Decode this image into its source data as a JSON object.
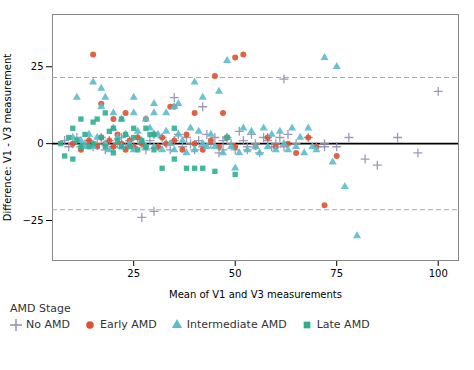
{
  "chart_data": {
    "type": "scatter",
    "xlabel": "Mean of V1 and V3 measurements",
    "ylabel": "Difference: V1 - V3 measurement",
    "xlim": [
      5,
      105
    ],
    "ylim": [
      -38,
      42
    ],
    "xticks": [
      25,
      50,
      75,
      100
    ],
    "yticks": [
      -25,
      0,
      25
    ],
    "grid": false,
    "legend_title": "AMD Stage",
    "lines": [
      {
        "value": 0,
        "color": "#000000",
        "line_style": "solid"
      },
      {
        "value": 21.5,
        "color": "#AAAAAA",
        "line_style": "dashed"
      },
      {
        "value": -21.5,
        "color": "#AAAAAA",
        "line_style": "dashed"
      }
    ],
    "series": [
      {
        "name": "No AMD",
        "color": "#9090B0",
        "marker": "plus",
        "x": [
          8,
          9,
          10,
          11,
          12,
          13,
          14,
          15,
          16,
          17,
          18,
          19,
          20,
          21,
          22,
          23,
          24,
          25,
          26,
          27,
          28,
          29,
          30,
          31,
          32,
          33,
          34,
          35,
          36,
          37,
          38,
          39,
          40,
          41,
          42,
          43,
          44,
          45,
          46,
          47,
          48,
          49,
          50,
          51,
          52,
          53,
          54,
          55,
          56,
          57,
          58,
          59,
          60,
          61,
          62,
          63,
          65,
          68,
          70,
          72,
          75,
          78,
          82,
          85,
          90,
          95,
          100,
          62,
          47,
          53,
          58,
          72,
          30,
          27,
          35,
          42
        ],
        "values": [
          1,
          -1,
          0,
          2,
          -1,
          0,
          1,
          -1,
          0,
          2,
          -2,
          1,
          -1,
          0,
          2,
          -1,
          1,
          -1,
          2,
          0,
          -2,
          1,
          3,
          -1,
          2,
          0,
          -2,
          1,
          3,
          -1,
          2,
          0,
          -2,
          1,
          -1,
          3,
          0,
          2,
          -3,
          1,
          2,
          0,
          -2,
          4,
          1,
          -2,
          3,
          0,
          -3,
          2,
          1,
          -1,
          0,
          2,
          -1,
          3,
          0,
          2,
          -1,
          0,
          -1,
          2,
          -5,
          -7,
          2,
          -3,
          17,
          21,
          -2,
          -1,
          2,
          -1,
          -22,
          -24,
          15,
          12
        ]
      },
      {
        "name": "Early AMD",
        "color": "#E05030",
        "marker": "circle",
        "x": [
          10,
          12,
          14,
          15,
          16,
          17,
          18,
          19,
          20,
          21,
          22,
          23,
          24,
          25,
          26,
          27,
          28,
          30,
          31,
          32,
          33,
          34,
          35,
          37,
          38,
          40,
          42,
          44,
          46,
          48,
          50,
          52,
          55,
          58,
          60,
          63,
          65,
          68,
          70,
          72,
          75,
          45,
          47,
          17,
          20,
          23,
          28,
          35,
          40,
          50
        ],
        "values": [
          0,
          -2,
          1,
          29,
          -1,
          2,
          0,
          1,
          -1,
          3,
          0,
          -2,
          1,
          -1,
          2,
          0,
          -1,
          3,
          -1,
          2,
          0,
          12,
          1,
          -2,
          3,
          0,
          -2,
          1,
          -1,
          2,
          -1,
          29,
          -1,
          2,
          -1,
          0,
          -3,
          2,
          -1,
          -20,
          -4,
          22,
          10,
          13,
          8,
          10,
          8,
          12,
          10,
          28
        ]
      },
      {
        "name": "Intermediate AMD",
        "color": "#5BBDCC",
        "marker": "triangle",
        "x": [
          10,
          11,
          12,
          13,
          14,
          15,
          16,
          17,
          18,
          19,
          20,
          21,
          22,
          23,
          24,
          25,
          26,
          27,
          28,
          29,
          30,
          31,
          32,
          33,
          34,
          35,
          36,
          37,
          38,
          39,
          40,
          41,
          42,
          43,
          44,
          45,
          46,
          47,
          48,
          49,
          50,
          51,
          52,
          53,
          54,
          55,
          56,
          57,
          58,
          59,
          60,
          61,
          62,
          63,
          64,
          65,
          66,
          67,
          68,
          69,
          70,
          72,
          74,
          75,
          77,
          80,
          25,
          28,
          30,
          33,
          36,
          40,
          18,
          20,
          22,
          15,
          17,
          25,
          30,
          35,
          42,
          48
        ],
        "values": [
          2,
          15,
          1,
          -1,
          3,
          -1,
          2,
          12,
          0,
          -2,
          5,
          2,
          -1,
          3,
          0,
          -2,
          4,
          1,
          -1,
          5,
          -1,
          3,
          -2,
          4,
          0,
          -2,
          3,
          1,
          -3,
          5,
          -2,
          4,
          0,
          -1,
          3,
          -1,
          17,
          -3,
          2,
          -1,
          -8,
          -3,
          5,
          -2,
          4,
          -1,
          -3,
          5,
          -1,
          3,
          -2,
          4,
          0,
          -2,
          5,
          -1,
          2,
          -3,
          5,
          -1,
          -2,
          28,
          -6,
          25,
          -14,
          -30,
          10,
          8,
          13,
          10,
          13,
          20,
          15,
          10,
          8,
          20,
          18,
          15,
          10,
          12,
          15,
          27
        ]
      },
      {
        "name": "Late AMD",
        "color": "#2DB090",
        "marker": "square",
        "x": [
          7,
          8,
          9,
          10,
          11,
          12,
          13,
          14,
          15,
          16,
          17,
          18,
          19,
          20,
          21,
          22,
          23,
          24,
          25,
          26,
          27,
          28,
          29,
          30,
          32,
          35,
          38,
          40,
          42,
          45,
          48,
          50,
          10,
          12,
          15,
          18,
          20,
          22,
          25,
          28,
          30,
          35
        ],
        "values": [
          0,
          -4,
          2,
          -5,
          1,
          -1,
          3,
          -1,
          0,
          8,
          2,
          -1,
          4,
          -3,
          1,
          -1,
          3,
          -1,
          2,
          -2,
          1,
          -1,
          3,
          -2,
          -8,
          -5,
          -8,
          -8,
          -8,
          -9,
          2,
          -10,
          5,
          8,
          7,
          10,
          5,
          8,
          5,
          5,
          3,
          5
        ]
      }
    ]
  }
}
